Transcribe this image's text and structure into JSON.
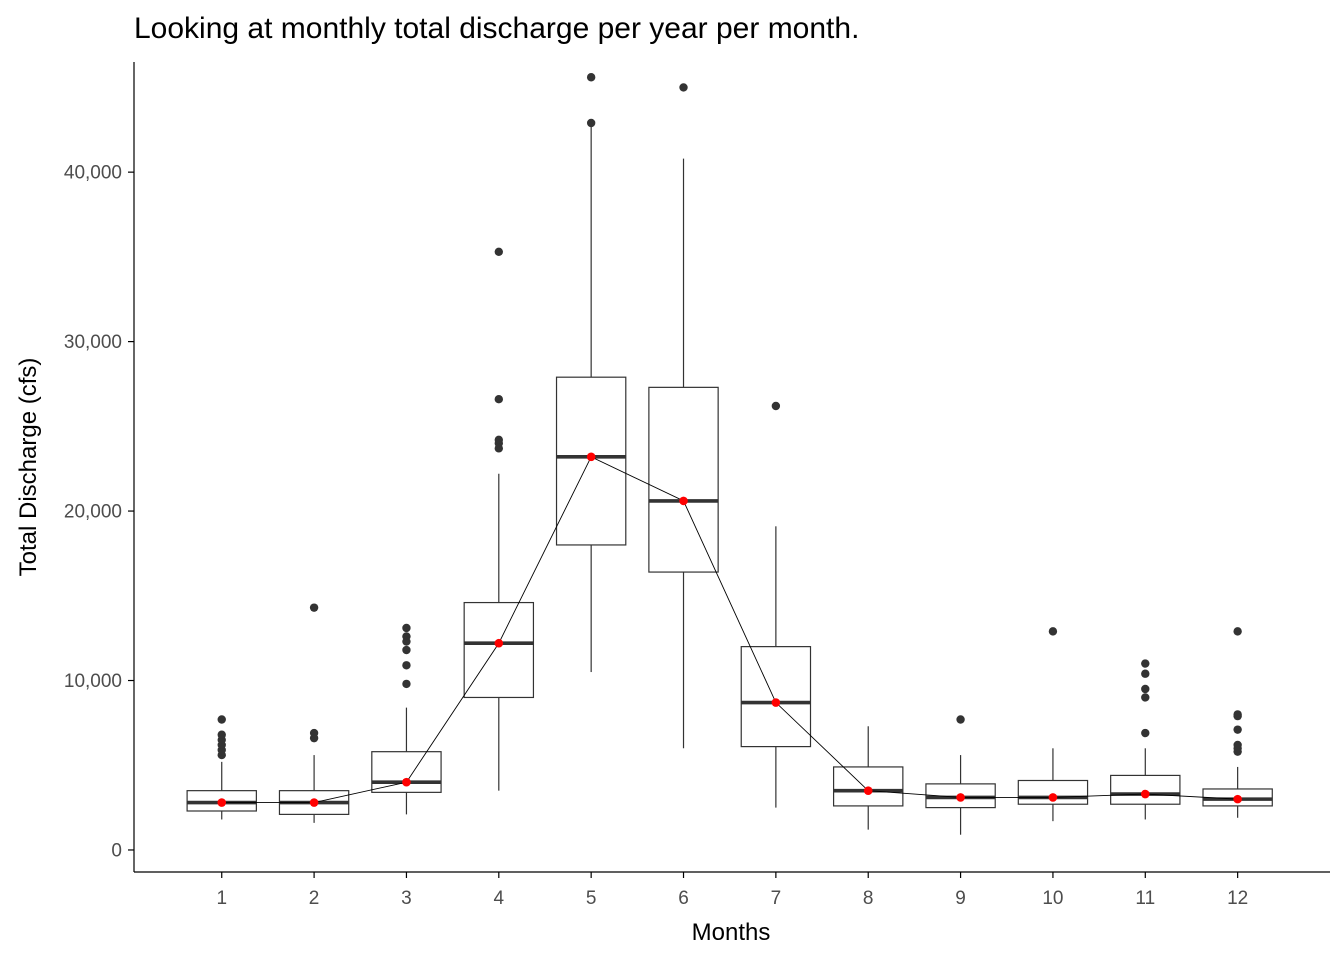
{
  "chart_data": {
    "type": "boxplot",
    "title": "Looking at monthly total discharge per year per month.",
    "xlabel": "Months",
    "ylabel": "Total Discharge (cfs)",
    "ylim": [
      -1300,
      46500
    ],
    "yticks": [
      0,
      10000,
      20000,
      30000,
      40000
    ],
    "ytick_labels": [
      "0",
      "10,000",
      "20,000",
      "30,000",
      "40,000"
    ],
    "grid": false,
    "categories": [
      "1",
      "2",
      "3",
      "4",
      "5",
      "6",
      "7",
      "8",
      "9",
      "10",
      "11",
      "12"
    ],
    "boxes": [
      {
        "month": "1",
        "whisker_low": 1800,
        "q1": 2300,
        "median": 2800,
        "q3": 3500,
        "whisker_high": 5200,
        "outliers": [
          5600,
          5900,
          6200,
          6500,
          6800,
          7700
        ]
      },
      {
        "month": "2",
        "whisker_low": 1600,
        "q1": 2100,
        "median": 2800,
        "q3": 3500,
        "whisker_high": 5600,
        "outliers": [
          6600,
          6900,
          14300
        ]
      },
      {
        "month": "3",
        "whisker_low": 2100,
        "q1": 3400,
        "median": 4000,
        "q3": 5800,
        "whisker_high": 8400,
        "outliers": [
          9800,
          10900,
          11800,
          12300,
          12600,
          13100
        ]
      },
      {
        "month": "4",
        "whisker_low": 3500,
        "q1": 9000,
        "median": 12200,
        "q3": 14600,
        "whisker_high": 22200,
        "outliers": [
          23700,
          24000,
          24200,
          26600,
          35300
        ]
      },
      {
        "month": "5",
        "whisker_low": 10500,
        "q1": 18000,
        "median": 23200,
        "q3": 27900,
        "whisker_high": 42700,
        "outliers": [
          42900,
          45600
        ]
      },
      {
        "month": "6",
        "whisker_low": 6000,
        "q1": 16400,
        "median": 20600,
        "q3": 27300,
        "whisker_high": 40800,
        "outliers": [
          45000
        ]
      },
      {
        "month": "7",
        "whisker_low": 2500,
        "q1": 6100,
        "median": 8700,
        "q3": 12000,
        "whisker_high": 19100,
        "outliers": [
          26200
        ]
      },
      {
        "month": "8",
        "whisker_low": 1200,
        "q1": 2600,
        "median": 3500,
        "q3": 4900,
        "whisker_high": 7300,
        "outliers": []
      },
      {
        "month": "9",
        "whisker_low": 900,
        "q1": 2500,
        "median": 3100,
        "q3": 3900,
        "whisker_high": 5600,
        "outliers": [
          7700
        ]
      },
      {
        "month": "10",
        "whisker_low": 1700,
        "q1": 2700,
        "median": 3100,
        "q3": 4100,
        "whisker_high": 6000,
        "outliers": [
          12900
        ]
      },
      {
        "month": "11",
        "whisker_low": 1800,
        "q1": 2700,
        "median": 3300,
        "q3": 4400,
        "whisker_high": 6000,
        "outliers": [
          6900,
          9000,
          9500,
          10400,
          11000
        ]
      },
      {
        "month": "12",
        "whisker_low": 1900,
        "q1": 2600,
        "median": 3000,
        "q3": 3600,
        "whisker_high": 4900,
        "outliers": [
          5800,
          6000,
          6200,
          7100,
          7900,
          8000,
          12900
        ]
      }
    ],
    "median_line": [
      2800,
      2800,
      4000,
      12200,
      23200,
      20600,
      8700,
      3500,
      3100,
      3100,
      3300,
      3000
    ],
    "colors": {
      "box_stroke": "#333333",
      "median_bar": "#333333",
      "outlier": "#333333",
      "median_point": "#ff0000",
      "median_line": "#000000",
      "axis": "#000000",
      "tick_label": "#4d4d4d"
    }
  }
}
